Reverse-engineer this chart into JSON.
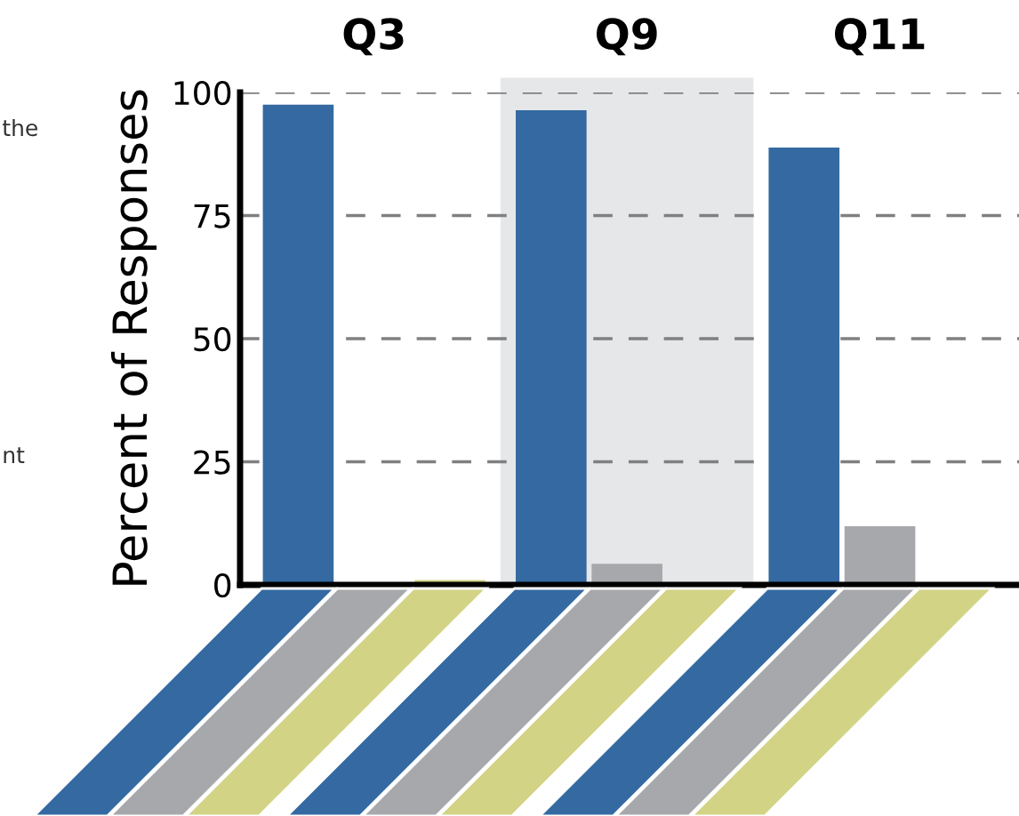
{
  "chart_data": {
    "type": "bar",
    "ylabel": "Percent of Responses",
    "categories": [
      "Q3",
      "Q9",
      "Q11"
    ],
    "series": [
      {
        "color": "#346aa1",
        "values": [
          97.5,
          96.4,
          88.8
        ]
      },
      {
        "color": "#a7a8ab",
        "values": [
          0,
          4.3,
          11.9
        ]
      },
      {
        "color": "#d2d385",
        "values": [
          1,
          0,
          0
        ]
      }
    ],
    "ylim": [
      0,
      100
    ],
    "yticks": [
      0,
      25,
      50,
      75,
      100
    ],
    "grid": "y",
    "bands": [
      {
        "axis": "x",
        "from": "Q9",
        "to": "Q9",
        "color": "#e6e7e9"
      }
    ],
    "annotations": [
      "the",
      "nt"
    ]
  }
}
